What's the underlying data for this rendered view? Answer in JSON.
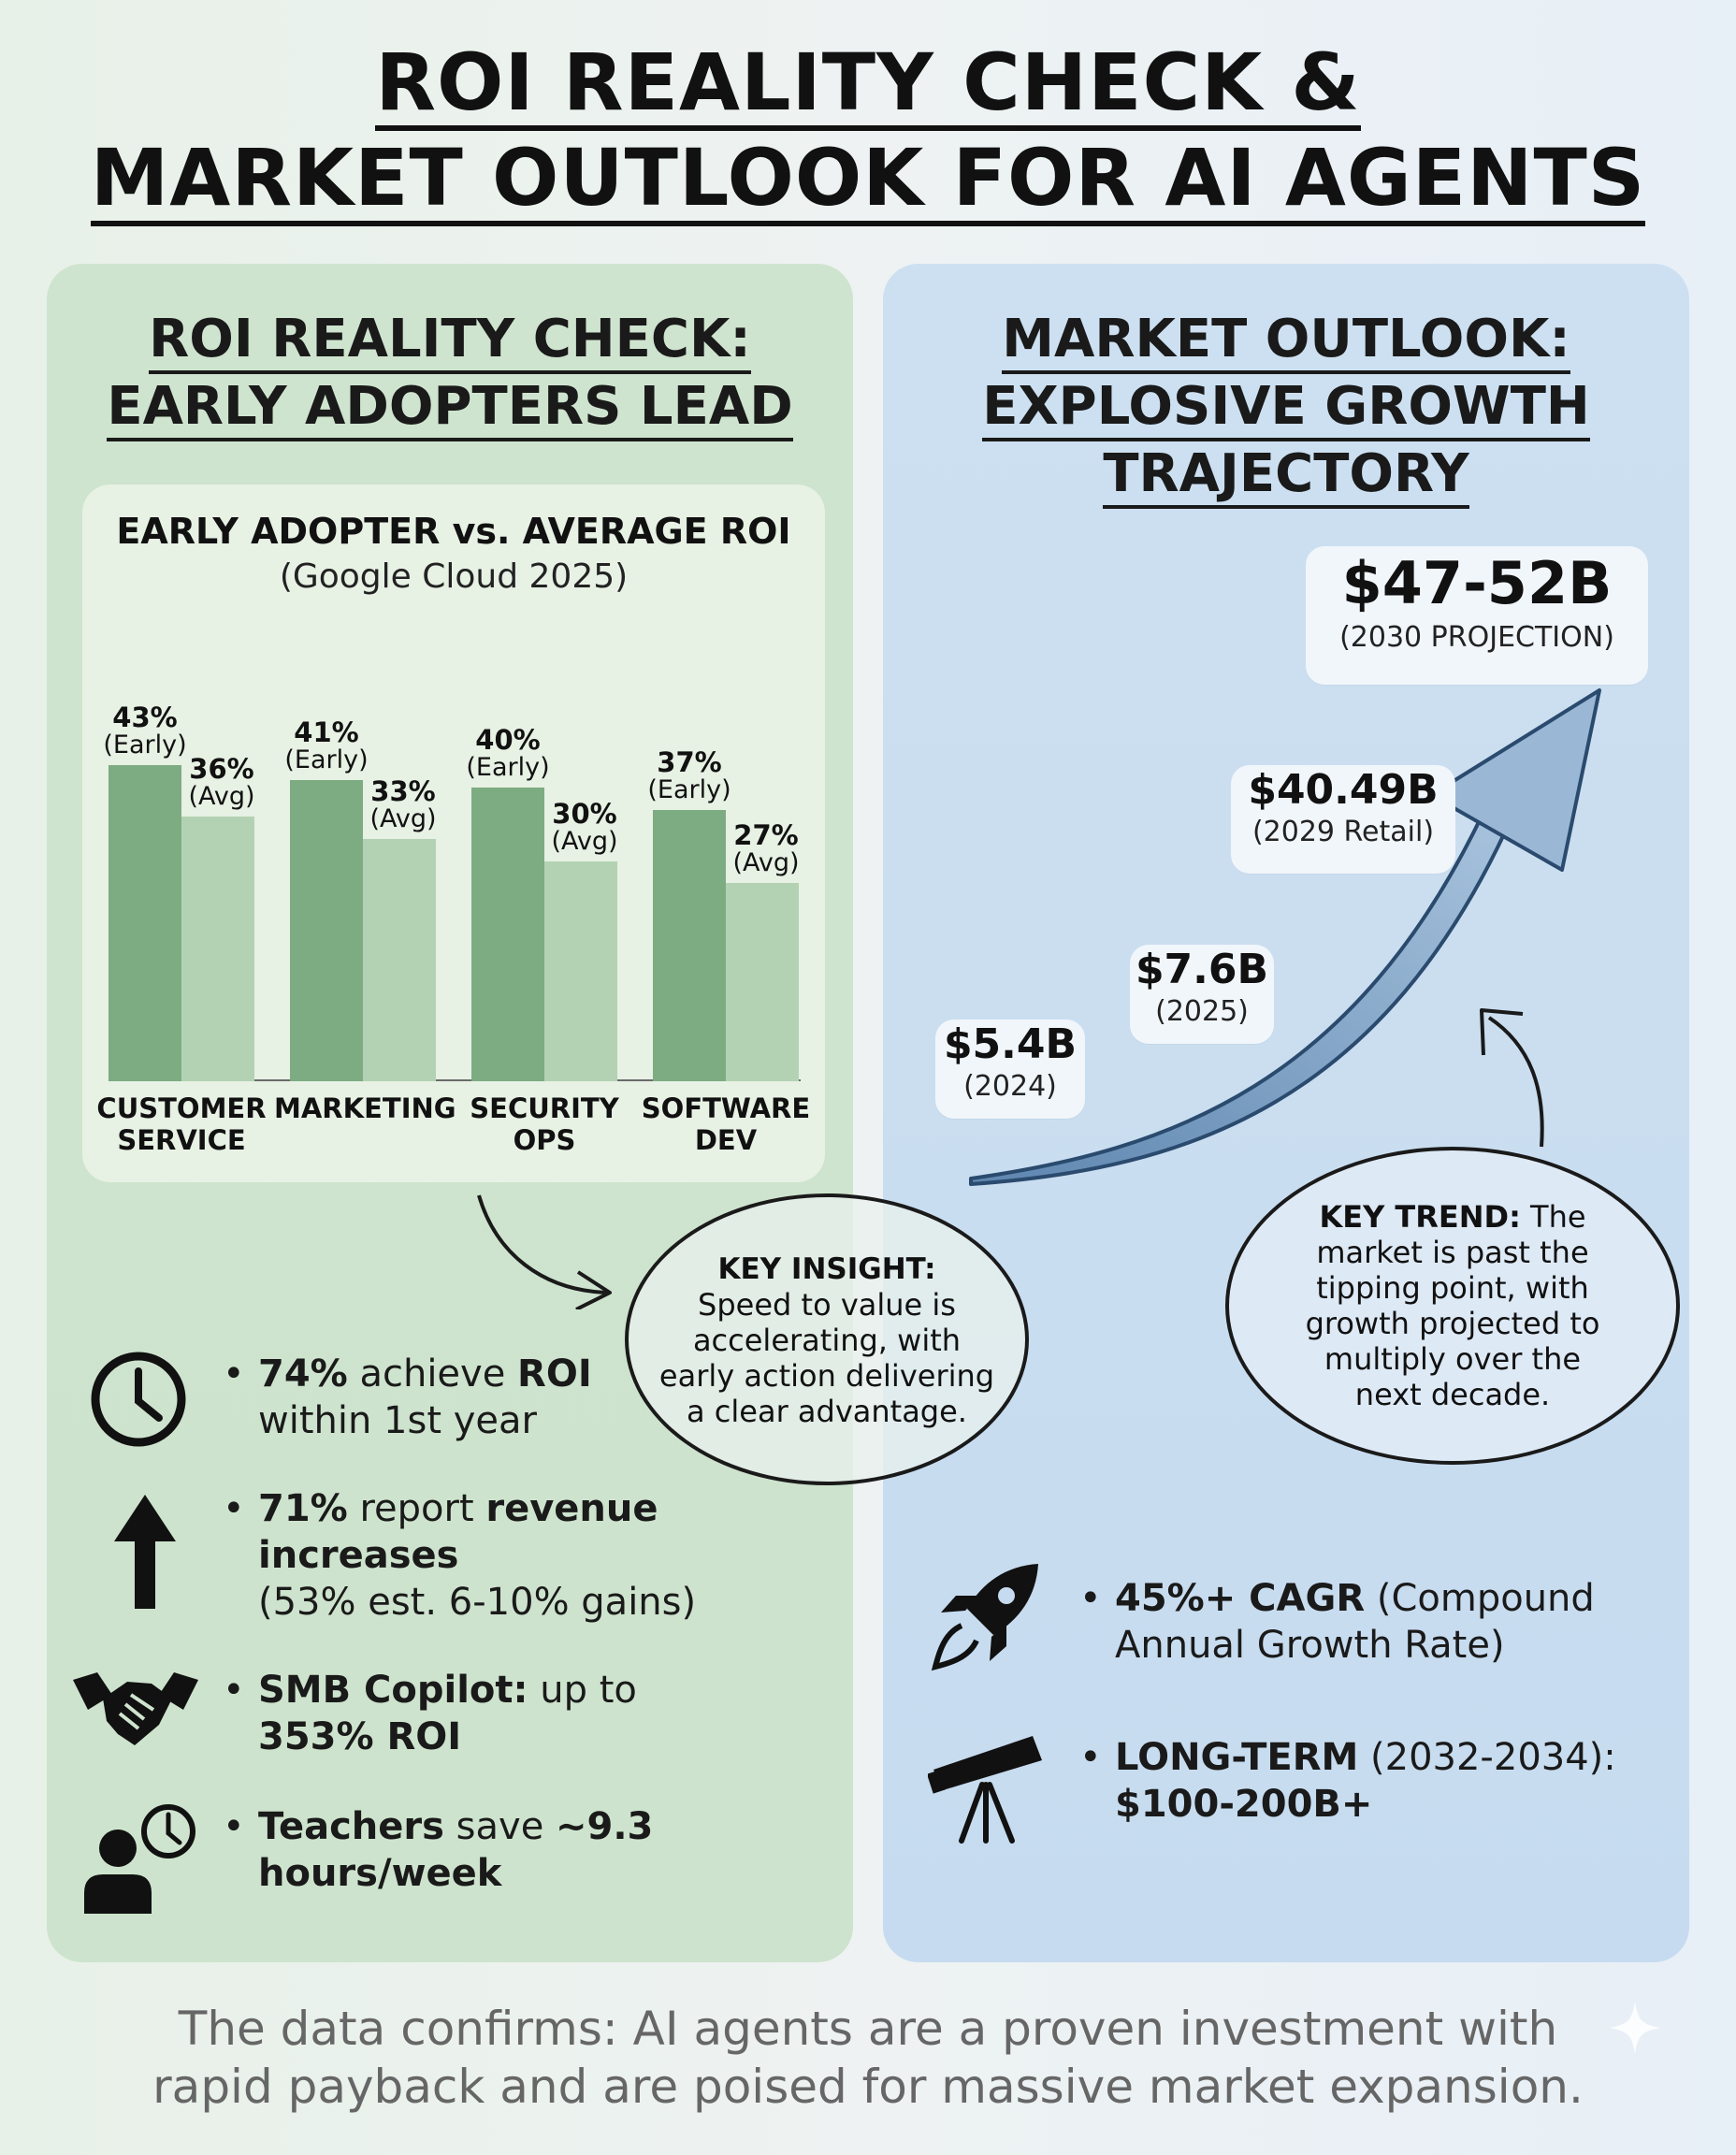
{
  "header": {
    "title_line1": "ROI REALITY CHECK &",
    "title_line2": "MARKET OUTLOOK FOR AI AGENTS"
  },
  "left_panel": {
    "title_line1": "ROI REALITY CHECK:",
    "title_line2": "EARLY ADOPTERS LEAD",
    "chart_title": "EARLY ADOPTER vs. AVERAGE ROI",
    "chart_subtitle": "(Google Cloud 2025)",
    "insight_label": "KEY INSIGHT:",
    "insight_text_1": "Speed to value is",
    "insight_text_2": "accelerating, with",
    "insight_text_3": "early action delivering",
    "insight_text_4": "a clear advantage.",
    "stats": [
      {
        "icon": "clock-icon",
        "bold1": "74%",
        "text1": " achieve ",
        "bold2": "ROI",
        "line2": "within 1st year"
      },
      {
        "icon": "up-arrow-icon",
        "bold1": "71%",
        "text1": " report ",
        "bold2": "revenue",
        "line2": "increases",
        "line3": "(53% est. 6-10% gains)"
      },
      {
        "icon": "handshake-icon",
        "bold1": "SMB Copilot:",
        "text1": " up to",
        "line2": "353% ROI"
      },
      {
        "icon": "teacher-clock-icon",
        "bold1": "Teachers",
        "text1": " save ",
        "bold2": "~9.3",
        "line2": "hours/week"
      }
    ]
  },
  "right_panel": {
    "title_line1": "MARKET OUTLOOK:",
    "title_line2": "EXPLOSIVE GROWTH",
    "title_line3": "TRAJECTORY",
    "milestones": [
      {
        "value": "$5.4B",
        "label": "(2024)"
      },
      {
        "value": "$7.6B",
        "label": "(2025)"
      },
      {
        "value": "$40.49B",
        "label": "(2029 Retail)"
      },
      {
        "value": "$47-52B",
        "label": "(2030 PROJECTION)"
      }
    ],
    "trend_label": "KEY TREND:",
    "trend_text_0": " The",
    "trend_text_1": "market is past the",
    "trend_text_2": "tipping point, with",
    "trend_text_3": "growth projected to",
    "trend_text_4": "multiply over the",
    "trend_text_5": "next decade.",
    "stats": [
      {
        "icon": "rocket-icon",
        "bold1": "45%+ CAGR",
        "text1": " (Compound",
        "line2": "Annual Growth Rate)"
      },
      {
        "icon": "telescope-icon",
        "bold1": "LONG-TERM",
        "text1": " (2032-2034):",
        "line2": "$100-200B+"
      }
    ]
  },
  "footer": {
    "line1": "The data confirms: AI agents are a proven investment with",
    "line2": "rapid payback and are poised for massive market expansion."
  },
  "chart_data": {
    "type": "bar",
    "title": "EARLY ADOPTER vs. AVERAGE ROI",
    "subtitle": "(Google Cloud 2025)",
    "categories": [
      "CUSTOMER SERVICE",
      "MARKETING",
      "SECURITY OPS",
      "SOFTWARE DEV"
    ],
    "category_lines": [
      [
        "CUSTOMER",
        "SERVICE"
      ],
      [
        "MARKETING"
      ],
      [
        "SECURITY",
        "OPS"
      ],
      [
        "SOFTWARE",
        "DEV"
      ]
    ],
    "series": [
      {
        "name": "Early",
        "values": [
          43,
          41,
          40,
          37
        ],
        "labels": [
          "43%",
          "41%",
          "40%",
          "37%"
        ],
        "tag": "(Early)"
      },
      {
        "name": "Avg",
        "values": [
          36,
          33,
          30,
          27
        ],
        "labels": [
          "36%",
          "33%",
          "30%",
          "27%"
        ],
        "tag": "(Avg)"
      }
    ],
    "colors": {
      "early": "#7dac82",
      "avg": "#b3d2b3"
    }
  }
}
